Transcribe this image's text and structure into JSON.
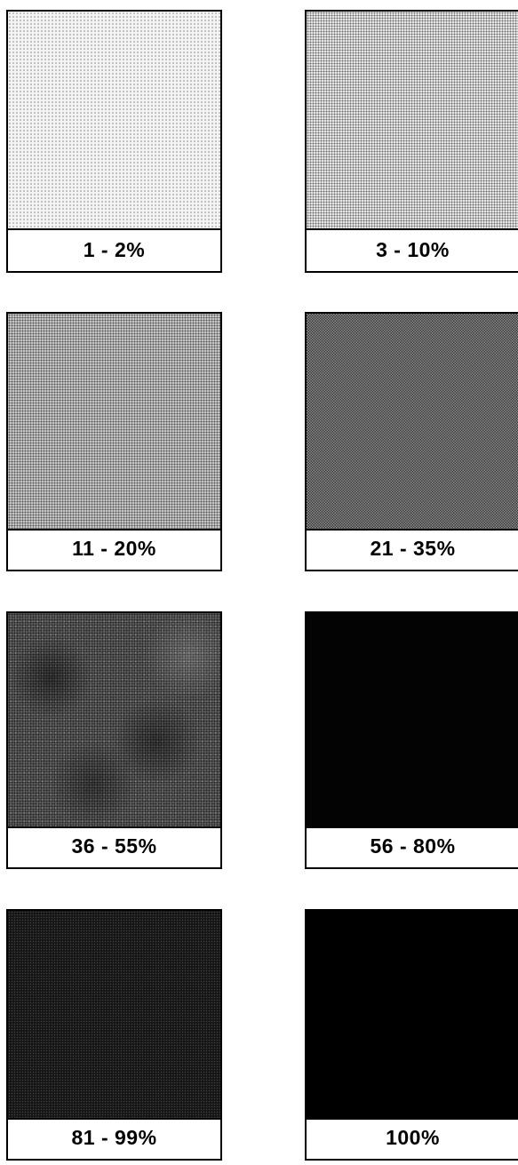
{
  "swatches": [
    {
      "label": "1 - 2%",
      "fill": "#f4f4f4"
    },
    {
      "label": "3 - 10%",
      "fill": "#e6e6e6"
    },
    {
      "label": "11 - 20%",
      "fill": "#c8c8c8"
    },
    {
      "label": "21 - 35%",
      "fill": "#8c8c8c"
    },
    {
      "label": "36 - 55%",
      "fill": "#5d5d5d"
    },
    {
      "label": "56 - 80%",
      "fill": "#030303"
    },
    {
      "label": "81 - 99%",
      "fill": "#161616"
    },
    {
      "label": "100%",
      "fill": "#000000"
    }
  ]
}
